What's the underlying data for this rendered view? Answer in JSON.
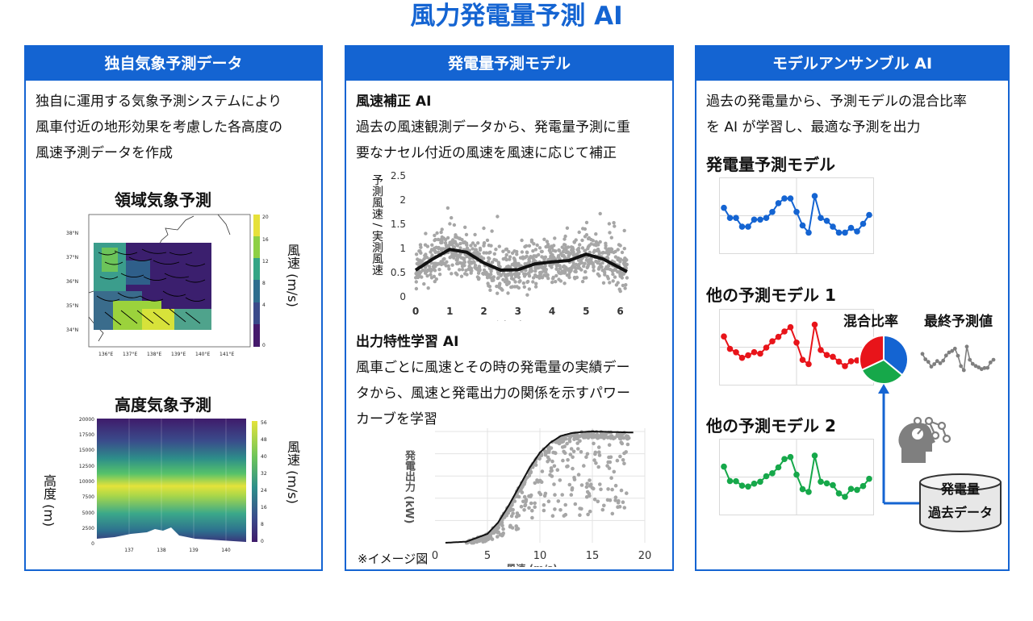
{
  "title": "風力発電量予測 AI",
  "panel1": {
    "header": "独自気象予測データ",
    "desc": [
      "独自に運用する気象予測システムにより",
      "風車付近の地形効果を考慮した各高度の",
      "風速予測データを作成"
    ],
    "map": {
      "title": "領域気象予測",
      "colorbar_label": "風速 (m/s)",
      "colorbar_ticks": [
        "20",
        "16",
        "12",
        "8",
        "4",
        "0"
      ],
      "lat_ticks": [
        "38°N",
        "37°N",
        "36°N",
        "35°N",
        "34°N"
      ],
      "lon_ticks": [
        "136°E",
        "137°E",
        "138°E",
        "139°E",
        "140°E",
        "141°E"
      ]
    },
    "height": {
      "title": "高度気象予測",
      "ylabel": "高度 (m)",
      "colorbar_label": "風速 (m/s)",
      "y_ticks": [
        "20000",
        "17500",
        "15000",
        "12500",
        "10000",
        "7500",
        "5000",
        "2500",
        "0"
      ],
      "x_ticks": [
        "137",
        "138",
        "139",
        "140"
      ],
      "colorbar_ticks": [
        "56",
        "48",
        "40",
        "32",
        "24",
        "16",
        "8",
        "0"
      ]
    }
  },
  "panel2": {
    "header": "発電量予測モデル",
    "section1_title": "風速補正 AI",
    "section1_desc": [
      "過去の風速観測データから、発電量予測に重",
      "要なナセル付近の風速を風速に応じて補正"
    ],
    "section2_title": "出力特性学習 AI",
    "section2_desc": [
      "風車ごとに風速とその時の発電量の実績デー",
      "タから、風速と発電出力の関係を示すパワー",
      "カーブを学習"
    ],
    "note": "※イメージ図",
    "colors": {
      "points": "#a6a6a6",
      "fit": "#111111"
    }
  },
  "panel3": {
    "header": "モデルアンサンブル AI",
    "desc": [
      "過去の発電量から、予測モデルの混合比率",
      "を AI が学習し、最適な予測を出力"
    ],
    "model1": "発電量予測モデル",
    "model2": "他の予測モデル 1",
    "model3": "他の予測モデル 2",
    "mix_label": "混合比率",
    "final_label": "最終予測値",
    "db_label1": "発電量",
    "db_label2": "過去データ",
    "colors": {
      "blue": "#1464d2",
      "red": "#e8141a",
      "green": "#16a84a",
      "gray": "#7f7f7f",
      "accent": "#1464d2"
    },
    "pie": [
      0.36,
      0.32,
      0.32
    ],
    "series": [
      0.62,
      0.45,
      0.45,
      0.3,
      0.3,
      0.42,
      0.42,
      0.45,
      0.55,
      0.7,
      0.78,
      0.78,
      0.55,
      0.32,
      0.2,
      0.82,
      0.45,
      0.4,
      0.3,
      0.2,
      0.2,
      0.28,
      0.22,
      0.35,
      0.5
    ]
  },
  "chart_data": [
    {
      "type": "scatter",
      "title": "",
      "xlabel": "予測風向 (rad)",
      "ylabel": "予測風速 / 実測風速",
      "x_ticks": [
        "0",
        "1",
        "2",
        "3",
        "4",
        "5",
        "6"
      ],
      "y_ticks": [
        "2.5",
        "2",
        "1.5",
        "1",
        "0.5",
        "0"
      ],
      "xlim": [
        0,
        6.2
      ],
      "ylim": [
        0,
        2.5
      ],
      "fit": {
        "x": [
          0,
          0.5,
          1,
          1.5,
          2,
          2.5,
          3,
          3.5,
          4,
          4.5,
          5,
          5.5,
          6.2
        ],
        "y": [
          0.55,
          0.78,
          0.98,
          0.92,
          0.7,
          0.55,
          0.56,
          0.68,
          0.72,
          0.75,
          0.88,
          0.78,
          0.52
        ]
      }
    },
    {
      "type": "scatter",
      "title": "",
      "xlabel": "風速 (m/s)",
      "ylabel": "発電出力 (kW)",
      "x_ticks": [
        "0",
        "5",
        "10",
        "15",
        "20"
      ],
      "xlim": [
        0,
        20
      ],
      "ylim": [
        0,
        1
      ],
      "fit": {
        "x": [
          1,
          3,
          5,
          6,
          7,
          8,
          9,
          10,
          11,
          12,
          13,
          14,
          15,
          19
        ],
        "y": [
          0,
          0.01,
          0.08,
          0.18,
          0.33,
          0.5,
          0.67,
          0.81,
          0.9,
          0.96,
          0.985,
          0.995,
          1,
          0.99
        ]
      }
    }
  ]
}
